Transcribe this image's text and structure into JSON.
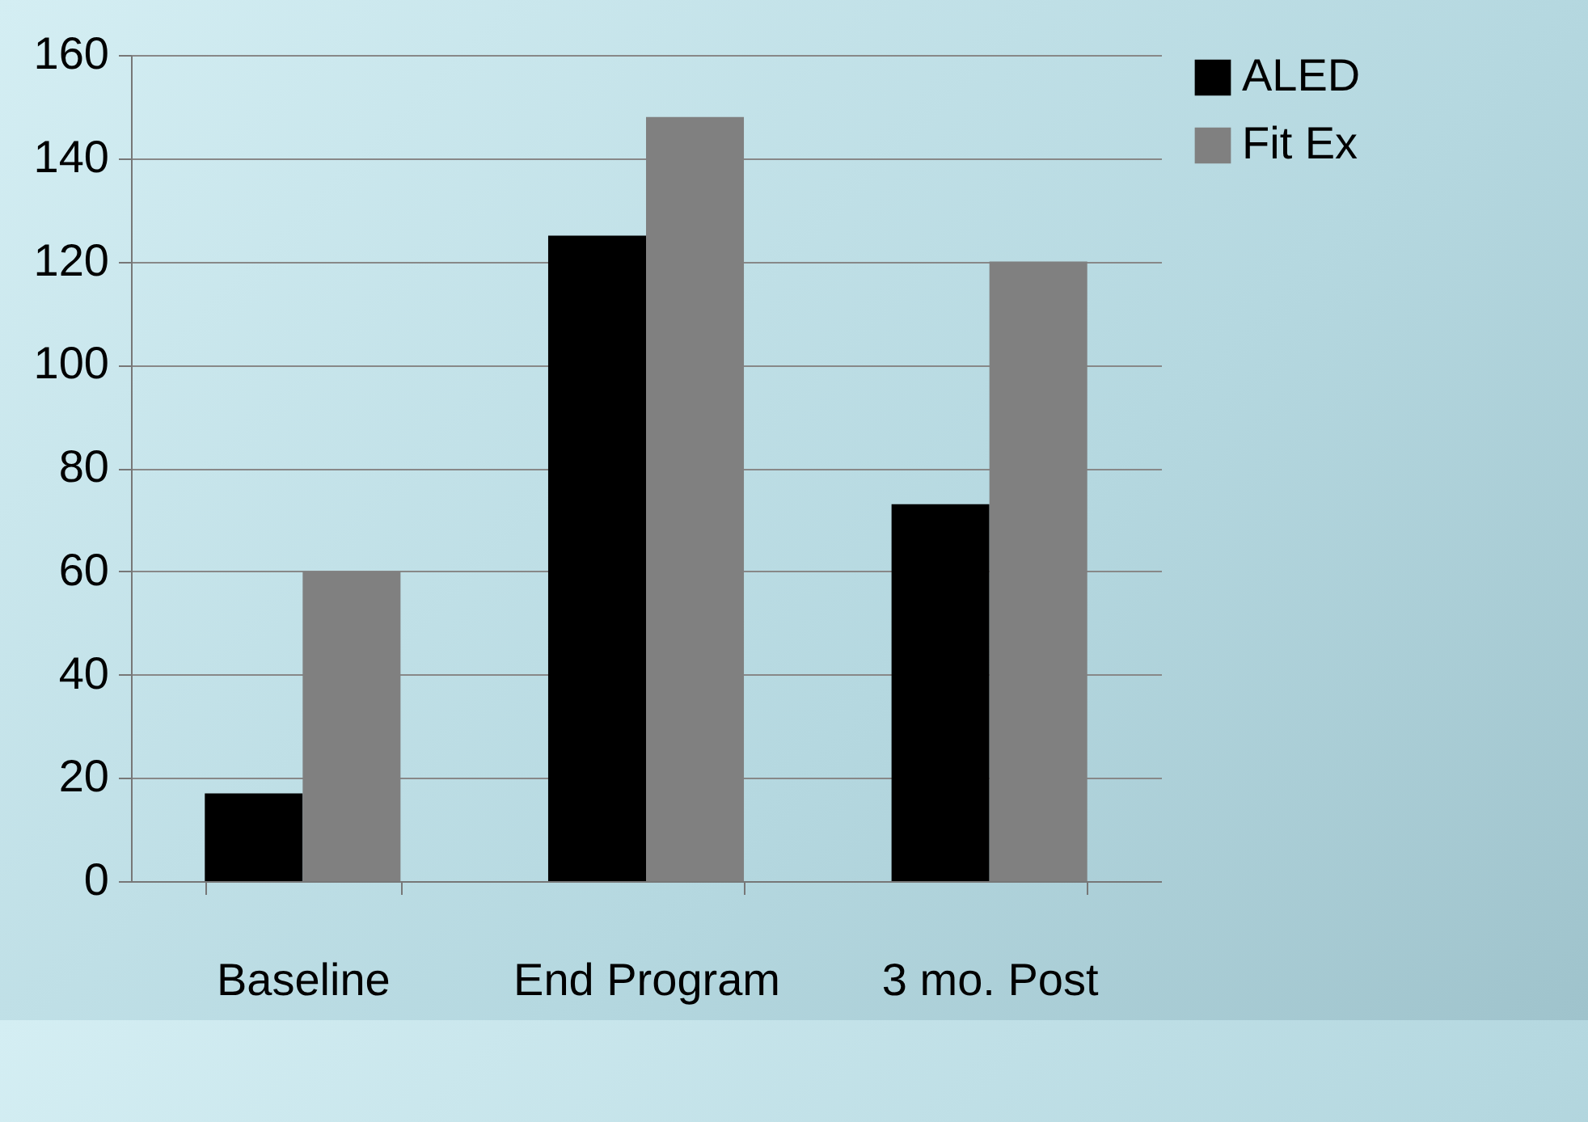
{
  "chart_data": {
    "type": "bar",
    "categories": [
      "Baseline",
      "End Program",
      "3 mo. Post"
    ],
    "series": [
      {
        "name": "ALED",
        "color": "#000000",
        "values": [
          17,
          125,
          73
        ]
      },
      {
        "name": "Fit Ex",
        "color": "#808080",
        "values": [
          60,
          148,
          120
        ]
      }
    ],
    "ylim": [
      0,
      160
    ],
    "yticks": [
      0,
      20,
      40,
      60,
      80,
      100,
      120,
      140,
      160
    ],
    "grid": "y",
    "legend": "right"
  }
}
